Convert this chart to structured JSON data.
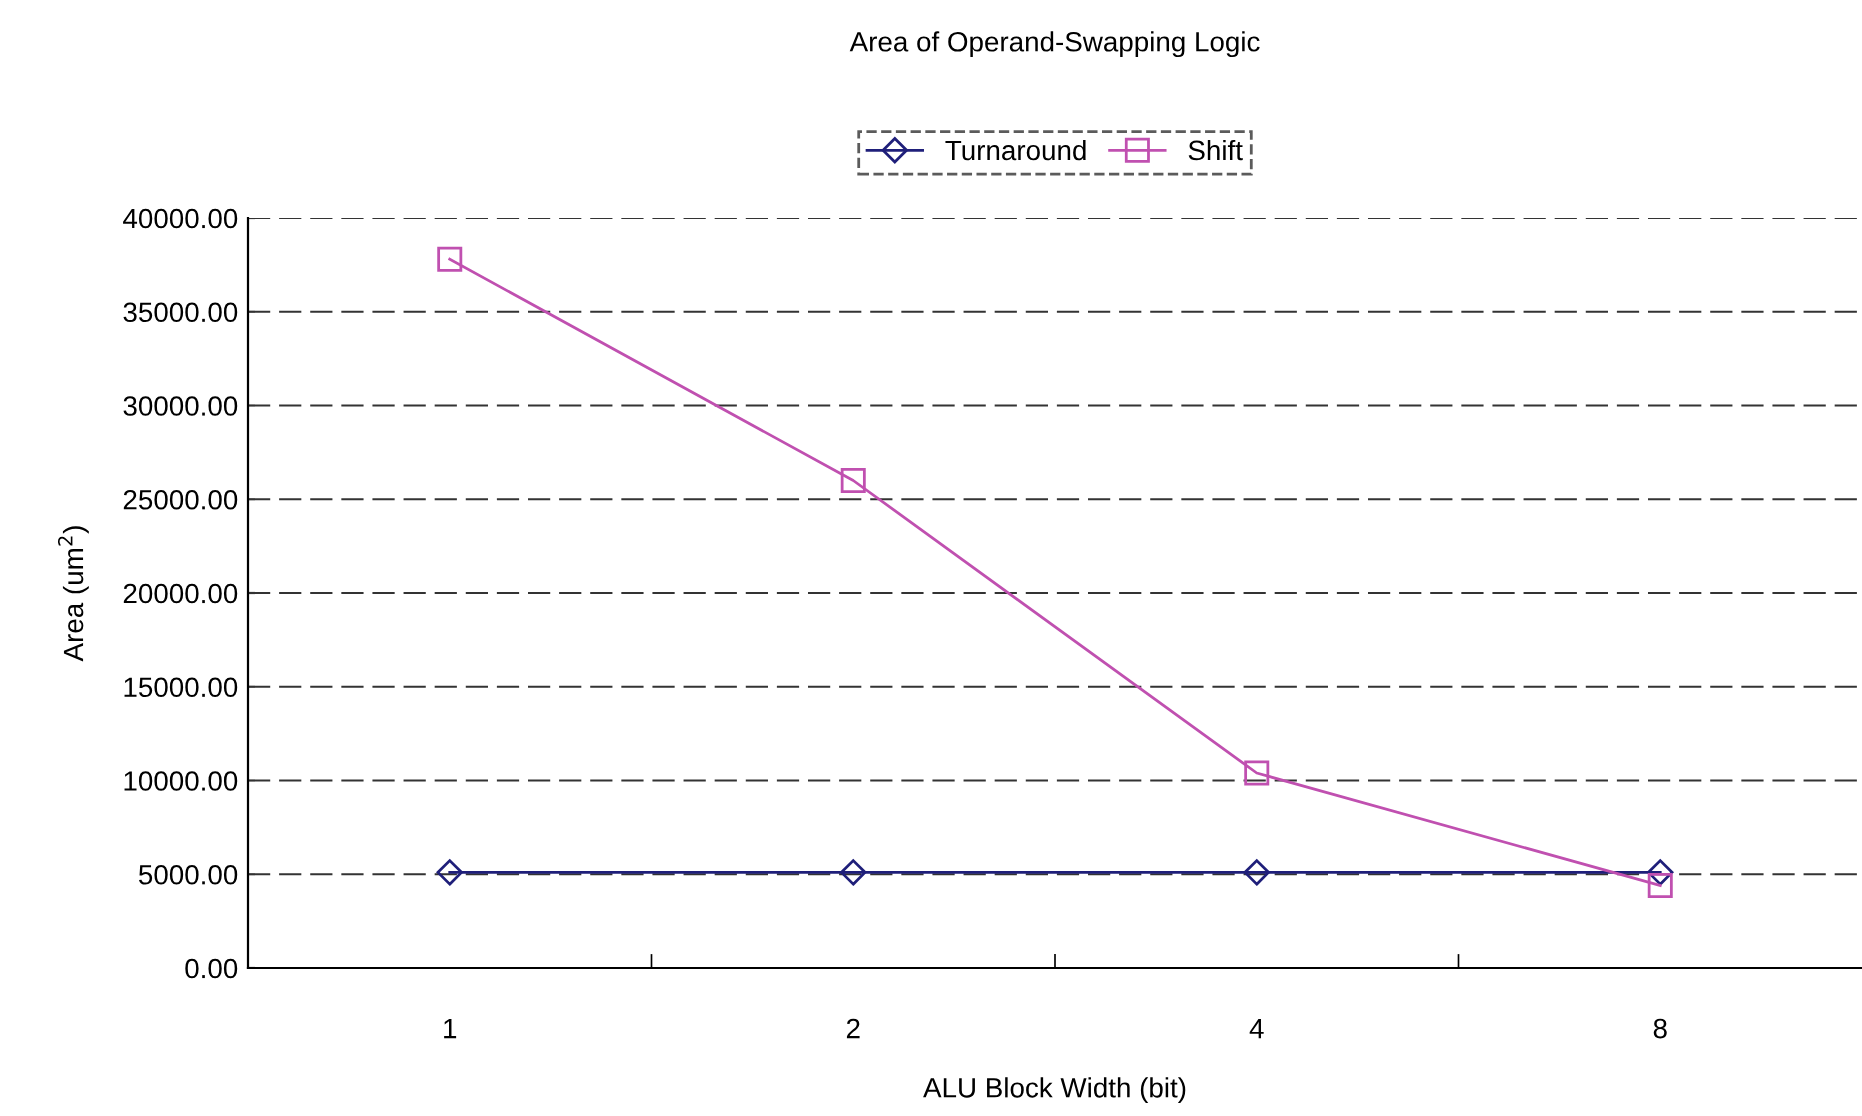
{
  "chart_data": {
    "type": "line",
    "title": "Area of Operand-Swapping Logic",
    "xlabel": "ALU Block Width (bit)",
    "ylabel": "Area (um$^{2}$)",
    "categories": [
      "1",
      "2",
      "4",
      "8"
    ],
    "series": [
      {
        "name": "Turnaround",
        "color": "#1f1f7a",
        "marker": "diamond",
        "values": [
          5100,
          5100,
          5100,
          5100
        ]
      },
      {
        "name": "Shift",
        "color": "#c050b0",
        "marker": "square",
        "values": [
          37800,
          26000,
          10400,
          4400
        ]
      }
    ],
    "ylim": [
      0,
      40000
    ],
    "yticks": [
      {
        "value": 0,
        "label": "0.00"
      },
      {
        "value": 5000,
        "label": "5000.00"
      },
      {
        "value": 10000,
        "label": "10000.00"
      },
      {
        "value": 15000,
        "label": "15000.00"
      },
      {
        "value": 20000,
        "label": "20000.00"
      },
      {
        "value": 25000,
        "label": "25000.00"
      },
      {
        "value": 30000,
        "label": "30000.00"
      },
      {
        "value": 35000,
        "label": "35000.00"
      },
      {
        "value": 40000,
        "label": "40000.00"
      }
    ],
    "grid": "y",
    "legend": "top",
    "line_style": "solid"
  }
}
